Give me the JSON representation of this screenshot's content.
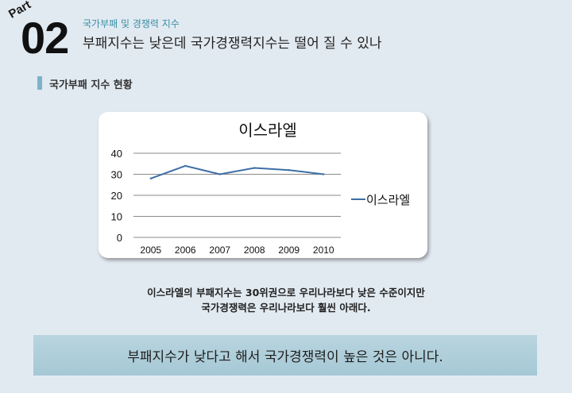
{
  "header": {
    "part_label": "Part",
    "part_number": "02",
    "subtitle": "국가부패 및 경쟁력 지수",
    "title": "부패지수는 낮은데 국가경쟁력지수는 떨어 질 수 있나"
  },
  "section": {
    "title": "국가부패 지수 현황"
  },
  "chart_data": {
    "type": "line",
    "title": "이스라엘",
    "categories": [
      "2005",
      "2006",
      "2007",
      "2008",
      "2009",
      "2010"
    ],
    "series": [
      {
        "name": "이스라엘",
        "values": [
          28,
          34,
          30,
          33,
          32,
          30
        ],
        "color": "#3d6fa6"
      }
    ],
    "yticks": [
      "0",
      "10",
      "20",
      "30",
      "40"
    ],
    "ylim": [
      0,
      40
    ],
    "grid": true,
    "legend": "right"
  },
  "notes": {
    "line1": "이스라엘의 부패지수는 30위권으로 우리나라보다 낮은 수준이지만",
    "line2": "국가경쟁력은 우리나라보다 훨씬 아래다."
  },
  "banner": {
    "text": "부패지수가 낮다고 해서 국가경쟁력이 높은 것은 아니다."
  }
}
